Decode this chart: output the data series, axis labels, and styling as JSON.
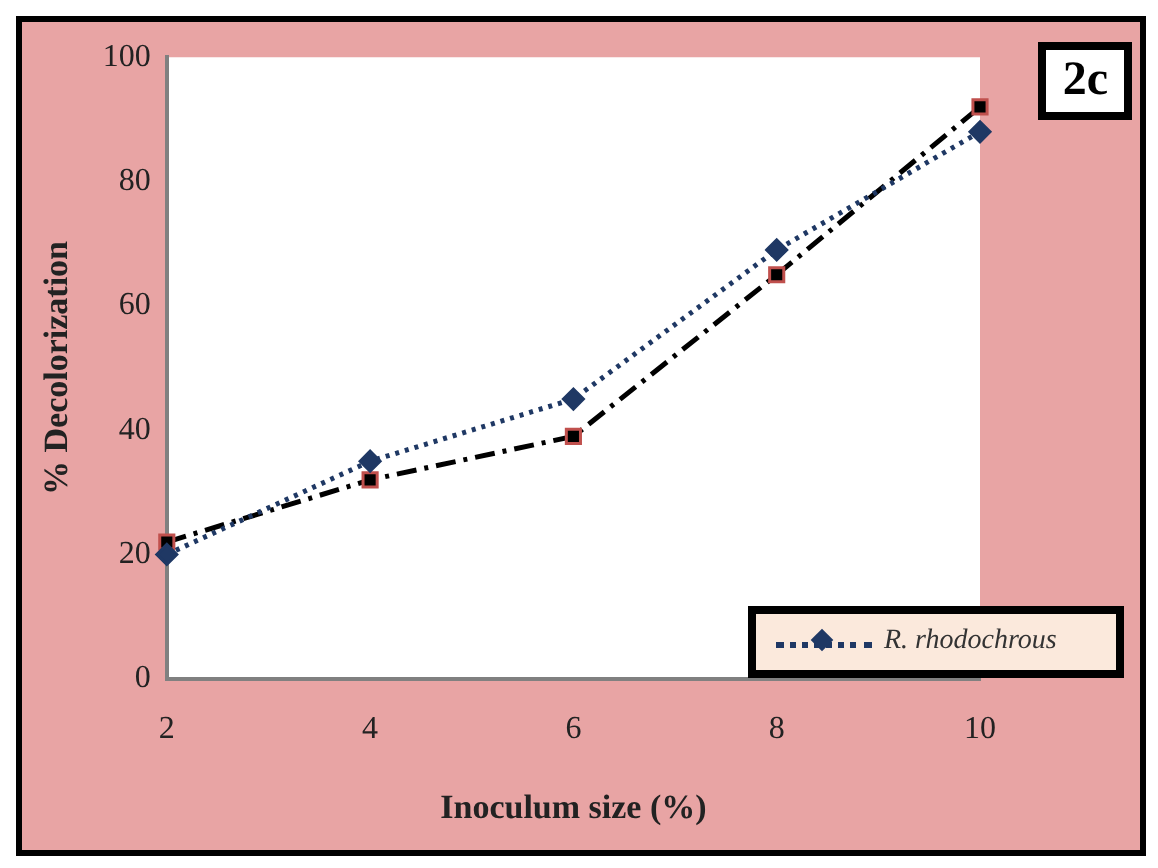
{
  "chart_data": {
    "type": "line",
    "xlabel": "Inoculum size (%)",
    "ylabel": "% Decolorization",
    "annotations": [
      "2c"
    ],
    "categories": [
      "2",
      "4",
      "6",
      "8",
      "10"
    ],
    "series": [
      {
        "name": "R. rhodochrous",
        "color": "#1f3864",
        "values": [
          20,
          35,
          45,
          69,
          88
        ],
        "marker": "diamond",
        "line_style": "dotted"
      },
      {
        "color": "#000000",
        "values": [
          22,
          32,
          39,
          65,
          92
        ],
        "marker": "square",
        "line_style": "dashed"
      }
    ],
    "ylim": [
      0,
      100
    ],
    "yticks": [
      0,
      20,
      40,
      60,
      80,
      100
    ],
    "grid": false,
    "legend": "bottom right"
  }
}
